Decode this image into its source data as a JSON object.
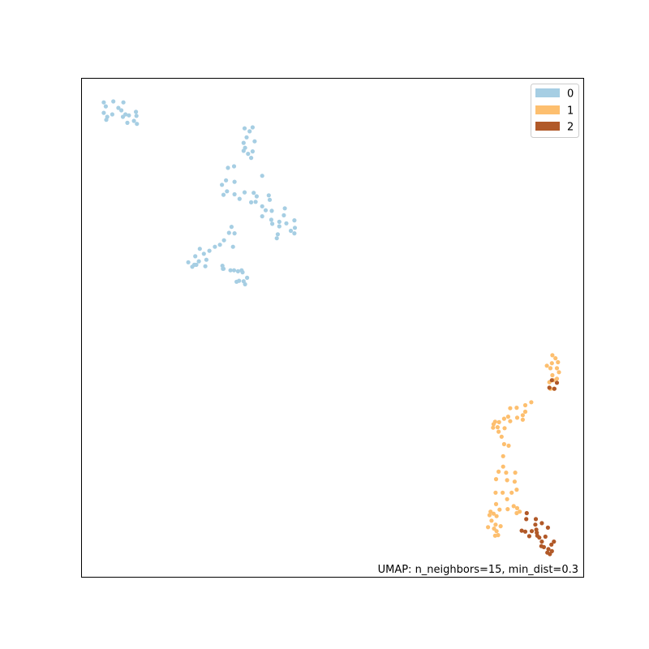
{
  "chart_data": {
    "type": "scatter",
    "title": "",
    "xlabel": "",
    "ylabel": "",
    "xlim": [
      0,
      100
    ],
    "ylim": [
      0,
      100
    ],
    "grid": false,
    "axis_ticks": false,
    "legend_placement": "top-right",
    "annotation": "UMAP: n_neighbors=15, min_dist=0.3",
    "series": [
      {
        "name": "0",
        "color": "#a6cee3",
        "points": [
          [
            4.5,
            95.1
          ],
          [
            6.4,
            95.3
          ],
          [
            8.4,
            95.1
          ],
          [
            4.9,
            94.3
          ],
          [
            7.4,
            94.0
          ],
          [
            10.9,
            93.2
          ],
          [
            4.5,
            93.0
          ],
          [
            6.2,
            92.7
          ],
          [
            8.3,
            92.2
          ],
          [
            9.5,
            92.5
          ],
          [
            8.0,
            93.5
          ],
          [
            5.2,
            92.2
          ],
          [
            10.5,
            91.4
          ],
          [
            9.2,
            91.0
          ],
          [
            11.1,
            90.8
          ],
          [
            11.0,
            92.4
          ],
          [
            5.0,
            91.6
          ],
          [
            8.8,
            92.7
          ],
          [
            32.5,
            89.9
          ],
          [
            34.1,
            90.1
          ],
          [
            33.5,
            89.3
          ],
          [
            32.9,
            88.1
          ],
          [
            32.3,
            87.0
          ],
          [
            34.5,
            87.3
          ],
          [
            32.6,
            86.0
          ],
          [
            34.1,
            85.3
          ],
          [
            33.2,
            84.8
          ],
          [
            33.8,
            84.0
          ],
          [
            32.3,
            85.4
          ],
          [
            30.4,
            82.3
          ],
          [
            29.2,
            82.0
          ],
          [
            36.0,
            80.4
          ],
          [
            28.8,
            79.5
          ],
          [
            30.5,
            79.2
          ],
          [
            28.0,
            78.6
          ],
          [
            29.0,
            77.3
          ],
          [
            28.3,
            76.6
          ],
          [
            30.5,
            76.7
          ],
          [
            31.5,
            75.8
          ],
          [
            32.5,
            77.1
          ],
          [
            34.3,
            77.0
          ],
          [
            34.9,
            76.3
          ],
          [
            37.3,
            76.5
          ],
          [
            37.5,
            75.6
          ],
          [
            33.8,
            75.1
          ],
          [
            34.7,
            75.2
          ],
          [
            36.0,
            74.3
          ],
          [
            36.7,
            73.5
          ],
          [
            37.9,
            73.4
          ],
          [
            40.5,
            73.9
          ],
          [
            40.3,
            72.5
          ],
          [
            36.0,
            72.3
          ],
          [
            37.8,
            71.6
          ],
          [
            39.4,
            71.2
          ],
          [
            42.4,
            71.5
          ],
          [
            40.8,
            70.9
          ],
          [
            39.4,
            70.3
          ],
          [
            42.5,
            70.0
          ],
          [
            41.7,
            69.4
          ],
          [
            42.4,
            68.9
          ],
          [
            39.1,
            68.7
          ],
          [
            38.9,
            67.9
          ],
          [
            38.0,
            70.8
          ],
          [
            29.9,
            70.2
          ],
          [
            29.4,
            69.0
          ],
          [
            30.5,
            68.9
          ],
          [
            30.2,
            66.2
          ],
          [
            28.4,
            67.5
          ],
          [
            27.6,
            66.6
          ],
          [
            26.6,
            66.2
          ],
          [
            25.5,
            65.4
          ],
          [
            24.4,
            64.8
          ],
          [
            23.6,
            65.8
          ],
          [
            22.7,
            64.3
          ],
          [
            24.9,
            63.6
          ],
          [
            23.4,
            63.3
          ],
          [
            22.9,
            62.6
          ],
          [
            24.7,
            62.3
          ],
          [
            22.5,
            62.6
          ],
          [
            22.1,
            62.2
          ],
          [
            21.3,
            63.1
          ],
          [
            28.1,
            62.4
          ],
          [
            28.2,
            61.8
          ],
          [
            29.7,
            61.5
          ],
          [
            30.4,
            61.5
          ],
          [
            31.2,
            61.3
          ],
          [
            32.1,
            61.1
          ],
          [
            33.0,
            60.0
          ],
          [
            31.4,
            59.4
          ],
          [
            32.3,
            59.3
          ],
          [
            32.6,
            58.7
          ],
          [
            30.9,
            59.2
          ],
          [
            28.3,
            61.8
          ],
          [
            31.9,
            61.5
          ]
        ]
      },
      {
        "name": "1",
        "color": "#fdbf6f",
        "points": [
          [
            93.7,
            44.5
          ],
          [
            94.3,
            43.9
          ],
          [
            94.8,
            43.1
          ],
          [
            93.6,
            42.9
          ],
          [
            94.6,
            41.9
          ],
          [
            93.3,
            41.9
          ],
          [
            95.0,
            41.1
          ],
          [
            92.6,
            42.4
          ],
          [
            93.7,
            40.5
          ],
          [
            93.9,
            39.5
          ],
          [
            94.0,
            37.8
          ],
          [
            93.3,
            37.8
          ],
          [
            94.6,
            39.8
          ],
          [
            93.1,
            39.1
          ],
          [
            89.5,
            35.1
          ],
          [
            88.3,
            34.5
          ],
          [
            86.6,
            34.0
          ],
          [
            88.3,
            33.2
          ],
          [
            87.8,
            32.5
          ],
          [
            86.7,
            32.0
          ],
          [
            87.8,
            31.6
          ],
          [
            85.3,
            33.9
          ],
          [
            84.9,
            32.2
          ],
          [
            85.3,
            31.3
          ],
          [
            84.1,
            31.8
          ],
          [
            82.3,
            31.2
          ],
          [
            83.1,
            31.1
          ],
          [
            82.8,
            30.1
          ],
          [
            83.0,
            29.2
          ],
          [
            84.2,
            29.9
          ],
          [
            82.0,
            30.7
          ],
          [
            81.9,
            30.0
          ],
          [
            83.6,
            28.2
          ],
          [
            84.1,
            26.7
          ],
          [
            85.0,
            26.4
          ],
          [
            83.9,
            24.3
          ],
          [
            83.9,
            22.2
          ],
          [
            83.0,
            21.2
          ],
          [
            84.5,
            21.0
          ],
          [
            82.5,
            19.7
          ],
          [
            84.7,
            19.5
          ],
          [
            86.2,
            19.2
          ],
          [
            86.3,
            21.0
          ],
          [
            86.6,
            17.6
          ],
          [
            85.6,
            17.0
          ],
          [
            83.8,
            17.0
          ],
          [
            82.4,
            17.0
          ],
          [
            84.7,
            15.7
          ],
          [
            82.5,
            14.7
          ],
          [
            86.0,
            14.3
          ],
          [
            84.8,
            13.7
          ],
          [
            86.6,
            12.9
          ],
          [
            86.7,
            13.9
          ],
          [
            87.2,
            13.2
          ],
          [
            81.4,
            13.2
          ],
          [
            81.2,
            12.5
          ],
          [
            82.0,
            12.8
          ],
          [
            82.6,
            12.3
          ],
          [
            81.6,
            11.4
          ],
          [
            82.4,
            10.6
          ],
          [
            83.4,
            10.3
          ],
          [
            82.1,
            9.8
          ],
          [
            80.9,
            10.1
          ],
          [
            82.6,
            9.3
          ],
          [
            82.9,
            8.5
          ],
          [
            82.3,
            8.4
          ],
          [
            83.2,
            13.6
          ]
        ]
      },
      {
        "name": "2",
        "color": "#b15928",
        "points": [
          [
            93.6,
            39.5
          ],
          [
            94.6,
            39.0
          ],
          [
            93.1,
            38.0
          ],
          [
            94.1,
            37.8
          ],
          [
            88.6,
            12.9
          ],
          [
            88.5,
            11.7
          ],
          [
            90.4,
            11.7
          ],
          [
            91.6,
            10.9
          ],
          [
            92.8,
            10.0
          ],
          [
            90.5,
            9.6
          ],
          [
            88.3,
            9.2
          ],
          [
            87.6,
            9.4
          ],
          [
            89.6,
            9.3
          ],
          [
            90.6,
            9.0
          ],
          [
            89.1,
            8.3
          ],
          [
            90.7,
            8.4
          ],
          [
            91.1,
            8.0
          ],
          [
            92.3,
            8.2
          ],
          [
            94.0,
            7.2
          ],
          [
            93.5,
            6.6
          ],
          [
            92.0,
            6.1
          ],
          [
            91.5,
            6.3
          ],
          [
            92.9,
            5.7
          ],
          [
            93.6,
            5.3
          ],
          [
            93.2,
            4.7
          ],
          [
            92.7,
            5.0
          ],
          [
            91.6,
            7.2
          ],
          [
            90.3,
            10.6
          ]
        ]
      }
    ]
  }
}
